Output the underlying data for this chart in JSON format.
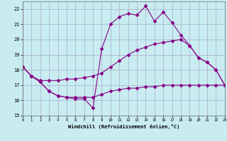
{
  "background_color": "#c8ecf0",
  "grid_color": "#aaaacc",
  "line_color": "#880088",
  "xlim": [
    0,
    23
  ],
  "ylim": [
    15,
    22.5
  ],
  "yticks": [
    15,
    16,
    17,
    18,
    19,
    20,
    21,
    22
  ],
  "xticks": [
    0,
    1,
    2,
    3,
    4,
    5,
    6,
    7,
    8,
    9,
    10,
    11,
    12,
    13,
    14,
    15,
    16,
    17,
    18,
    19,
    20,
    21,
    22,
    23
  ],
  "xlabel": "Windchill (Refroidissement éolien,°C)",
  "line_zigzag_x": [
    0,
    1,
    2,
    3,
    4,
    5,
    6,
    7,
    8,
    9,
    10,
    11,
    12,
    13,
    14,
    15,
    16,
    17,
    18,
    19,
    20,
    21,
    22,
    23
  ],
  "line_zigzag_y": [
    18.2,
    17.6,
    17.2,
    16.6,
    16.3,
    16.2,
    16.1,
    16.1,
    15.5,
    19.4,
    21.0,
    21.5,
    21.7,
    21.6,
    22.2,
    21.2,
    21.8,
    21.1,
    20.3,
    19.6,
    18.8,
    18.5,
    18.0,
    17.0
  ],
  "line_upper_x": [
    0,
    1,
    2,
    3,
    4,
    5,
    6,
    7,
    8,
    9,
    10,
    11,
    12,
    13,
    14,
    15,
    16,
    17,
    18,
    19,
    20,
    21,
    22,
    23
  ],
  "line_upper_y": [
    18.2,
    17.6,
    17.3,
    17.3,
    17.3,
    17.4,
    17.4,
    17.5,
    17.6,
    17.8,
    18.2,
    18.6,
    19.0,
    19.3,
    19.5,
    19.7,
    19.8,
    19.9,
    20.0,
    19.6,
    18.8,
    18.5,
    18.0,
    17.0
  ],
  "line_lower_x": [
    0,
    1,
    2,
    3,
    4,
    5,
    6,
    7,
    8,
    9,
    10,
    11,
    12,
    13,
    14,
    15,
    16,
    17,
    18,
    19,
    20,
    21,
    22,
    23
  ],
  "line_lower_y": [
    18.2,
    17.6,
    17.2,
    16.6,
    16.3,
    16.2,
    16.2,
    16.2,
    16.2,
    16.4,
    16.6,
    16.7,
    16.8,
    16.8,
    16.9,
    16.9,
    17.0,
    17.0,
    17.0,
    17.0,
    17.0,
    17.0,
    17.0,
    17.0
  ]
}
